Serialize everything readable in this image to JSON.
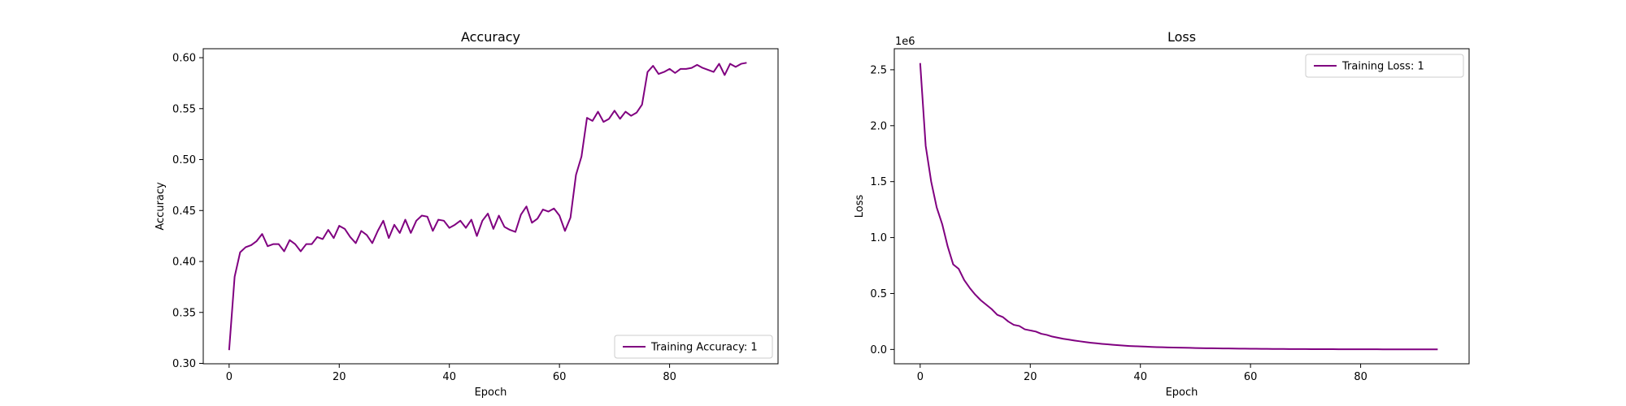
{
  "chart_data": [
    {
      "type": "line",
      "title": "Accuracy",
      "xlabel": "Epoch",
      "ylabel": "Accuracy",
      "xlim": [
        -4.7,
        99.7
      ],
      "ylim": [
        0.2996,
        0.6088
      ],
      "xticks": [
        0,
        20,
        40,
        60,
        80
      ],
      "xtick_labels": [
        "0",
        "20",
        "40",
        "60",
        "80"
      ],
      "yticks": [
        0.3,
        0.35,
        0.4,
        0.45,
        0.5,
        0.55,
        0.6
      ],
      "ytick_labels": [
        "0.30",
        "0.35",
        "0.40",
        "0.45",
        "0.50",
        "0.55",
        "0.60"
      ],
      "legend_position": "lower-right",
      "color": "#800080",
      "series": [
        {
          "name": "Training Accuracy: 1",
          "x": [
            0,
            1,
            2,
            3,
            4,
            5,
            6,
            7,
            8,
            9,
            10,
            11,
            12,
            13,
            14,
            15,
            16,
            17,
            18,
            19,
            20,
            21,
            22,
            23,
            24,
            25,
            26,
            27,
            28,
            29,
            30,
            31,
            32,
            33,
            34,
            35,
            36,
            37,
            38,
            39,
            40,
            41,
            42,
            43,
            44,
            45,
            46,
            47,
            48,
            49,
            50,
            51,
            52,
            53,
            54,
            55,
            56,
            57,
            58,
            59,
            60,
            61,
            62,
            63,
            64,
            65,
            66,
            67,
            68,
            69,
            70,
            71,
            72,
            73,
            74,
            75,
            76,
            77,
            78,
            79,
            80,
            81,
            82,
            83,
            84,
            85,
            86,
            87,
            88,
            89,
            90,
            91,
            92,
            93,
            94
          ],
          "values": [
            0.313,
            0.385,
            0.409,
            0.414,
            0.416,
            0.42,
            0.427,
            0.415,
            0.417,
            0.417,
            0.41,
            0.421,
            0.417,
            0.41,
            0.417,
            0.417,
            0.424,
            0.422,
            0.431,
            0.423,
            0.435,
            0.432,
            0.424,
            0.418,
            0.43,
            0.426,
            0.418,
            0.43,
            0.44,
            0.423,
            0.436,
            0.428,
            0.441,
            0.428,
            0.44,
            0.445,
            0.444,
            0.43,
            0.441,
            0.44,
            0.433,
            0.436,
            0.44,
            0.433,
            0.441,
            0.425,
            0.44,
            0.447,
            0.432,
            0.445,
            0.434,
            0.431,
            0.429,
            0.446,
            0.454,
            0.438,
            0.442,
            0.451,
            0.449,
            0.452,
            0.445,
            0.43,
            0.443,
            0.485,
            0.503,
            0.541,
            0.538,
            0.547,
            0.537,
            0.54,
            0.548,
            0.54,
            0.547,
            0.543,
            0.546,
            0.554,
            0.586,
            0.592,
            0.584,
            0.586,
            0.589,
            0.585,
            0.589,
            0.589,
            0.59,
            0.593,
            0.59,
            0.588,
            0.586,
            0.594,
            0.583,
            0.594,
            0.591,
            0.594,
            0.595
          ]
        }
      ]
    },
    {
      "type": "line",
      "title": "Loss",
      "xlabel": "Epoch",
      "ylabel": "Loss",
      "scale_label": "1e6",
      "xlim": [
        -4.7,
        99.7
      ],
      "ylim": [
        -128000,
        2688000
      ],
      "xticks": [
        0,
        20,
        40,
        60,
        80
      ],
      "xtick_labels": [
        "0",
        "20",
        "40",
        "60",
        "80"
      ],
      "yticks": [
        0,
        500000,
        1000000,
        1500000,
        2000000,
        2500000
      ],
      "ytick_labels": [
        "0.0",
        "0.5",
        "1.0",
        "1.5",
        "2.0",
        "2.5"
      ],
      "legend_position": "upper-right",
      "color": "#800080",
      "series": [
        {
          "name": "Training Loss: 1",
          "x": [
            0,
            1,
            2,
            3,
            4,
            5,
            6,
            7,
            8,
            9,
            10,
            11,
            12,
            13,
            14,
            15,
            16,
            17,
            18,
            19,
            20,
            21,
            22,
            23,
            24,
            25,
            26,
            27,
            28,
            29,
            30,
            31,
            32,
            33,
            34,
            35,
            36,
            37,
            38,
            39,
            40,
            41,
            42,
            43,
            44,
            45,
            46,
            47,
            48,
            49,
            50,
            51,
            52,
            53,
            54,
            55,
            56,
            57,
            58,
            59,
            60,
            61,
            62,
            63,
            64,
            65,
            66,
            67,
            68,
            69,
            70,
            71,
            72,
            73,
            74,
            75,
            76,
            77,
            78,
            79,
            80,
            81,
            82,
            83,
            84,
            85,
            86,
            87,
            88,
            89,
            90,
            91,
            92,
            93,
            94
          ],
          "values": [
            2560000,
            1820000,
            1500000,
            1270000,
            1120000,
            920000,
            760000,
            720000,
            620000,
            550000,
            490000,
            440000,
            400000,
            360000,
            310000,
            290000,
            250000,
            220000,
            210000,
            180000,
            170000,
            160000,
            140000,
            130000,
            115000,
            105000,
            95000,
            88000,
            80000,
            73000,
            66000,
            60000,
            55000,
            50000,
            46000,
            42000,
            38000,
            34000,
            31000,
            29000,
            27000,
            25000,
            23000,
            21000,
            19500,
            18000,
            17000,
            16000,
            15000,
            14000,
            13000,
            12000,
            11200,
            10500,
            9800,
            9200,
            8600,
            8000,
            7500,
            7000,
            6500,
            6000,
            5600,
            5200,
            4800,
            4500,
            4200,
            3900,
            3600,
            3400,
            3200,
            3000,
            2800,
            2600,
            2400,
            2200,
            2000,
            1900,
            1800,
            1700,
            1600,
            1500,
            1400,
            1300,
            1200,
            1100,
            1000,
            950,
            900,
            850,
            800,
            750,
            700,
            650,
            600
          ]
        }
      ]
    }
  ]
}
